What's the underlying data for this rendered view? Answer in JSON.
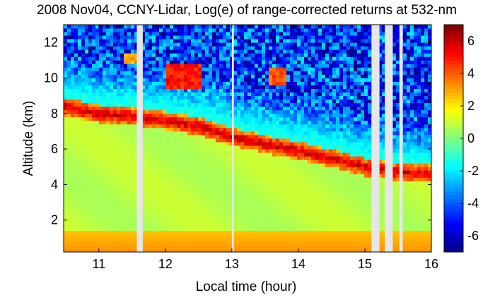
{
  "chart_data": {
    "type": "heatmap",
    "title": "2008 Nov04, CCNY-Lidar, Log(e) of range-corrected returns at 532-nm",
    "xlabel": "Local time (hour)",
    "ylabel": "Altitude (km)",
    "xlim": [
      10.47,
      16.0
    ],
    "ylim": [
      0.2,
      13.0
    ],
    "x_ticks": [
      11,
      12,
      13,
      14,
      15,
      16
    ],
    "y_ticks": [
      2,
      4,
      6,
      8,
      10,
      12
    ],
    "colorbar": {
      "colormap": "jet",
      "range": [
        -7,
        7
      ],
      "ticks": [
        6,
        4,
        2,
        0,
        -2,
        -4,
        -6
      ],
      "tick_labels": [
        "6",
        "4",
        "2",
        "0",
        "-2",
        "-4",
        "-6"
      ]
    },
    "data_gaps": [
      [
        11.57,
        11.66
      ],
      [
        13.0,
        13.03
      ],
      [
        15.1,
        15.22
      ],
      [
        15.3,
        15.42
      ],
      [
        15.52,
        15.57
      ]
    ],
    "features": {
      "surface_layer": {
        "top_km": 1.5,
        "value": 2.5
      },
      "boundary_layer": {
        "value": 0.8
      },
      "free_troposphere_background": {
        "value": -1.5
      },
      "noise_region": {
        "value": -4.5
      },
      "aerosol_layer_top": {
        "time": [
          10.5,
          11.0,
          11.6,
          12.0,
          12.5,
          13.0,
          13.5,
          14.0,
          14.5,
          15.0,
          15.5,
          16.0
        ],
        "altitude_km": [
          8.4,
          8.0,
          7.8,
          7.6,
          7.3,
          6.7,
          6.3,
          5.9,
          5.5,
          5.0,
          4.7,
          4.6
        ]
      },
      "elevated_plumes": [
        {
          "t0": 11.4,
          "t1": 11.6,
          "z0": 10.9,
          "z1": 11.3,
          "value": 3.0
        },
        {
          "t0": 12.0,
          "t1": 12.55,
          "z0": 9.4,
          "z1": 10.8,
          "value": 5.0
        },
        {
          "t0": 13.55,
          "t1": 13.8,
          "z0": 9.6,
          "z1": 10.6,
          "value": 4.0
        }
      ]
    }
  }
}
